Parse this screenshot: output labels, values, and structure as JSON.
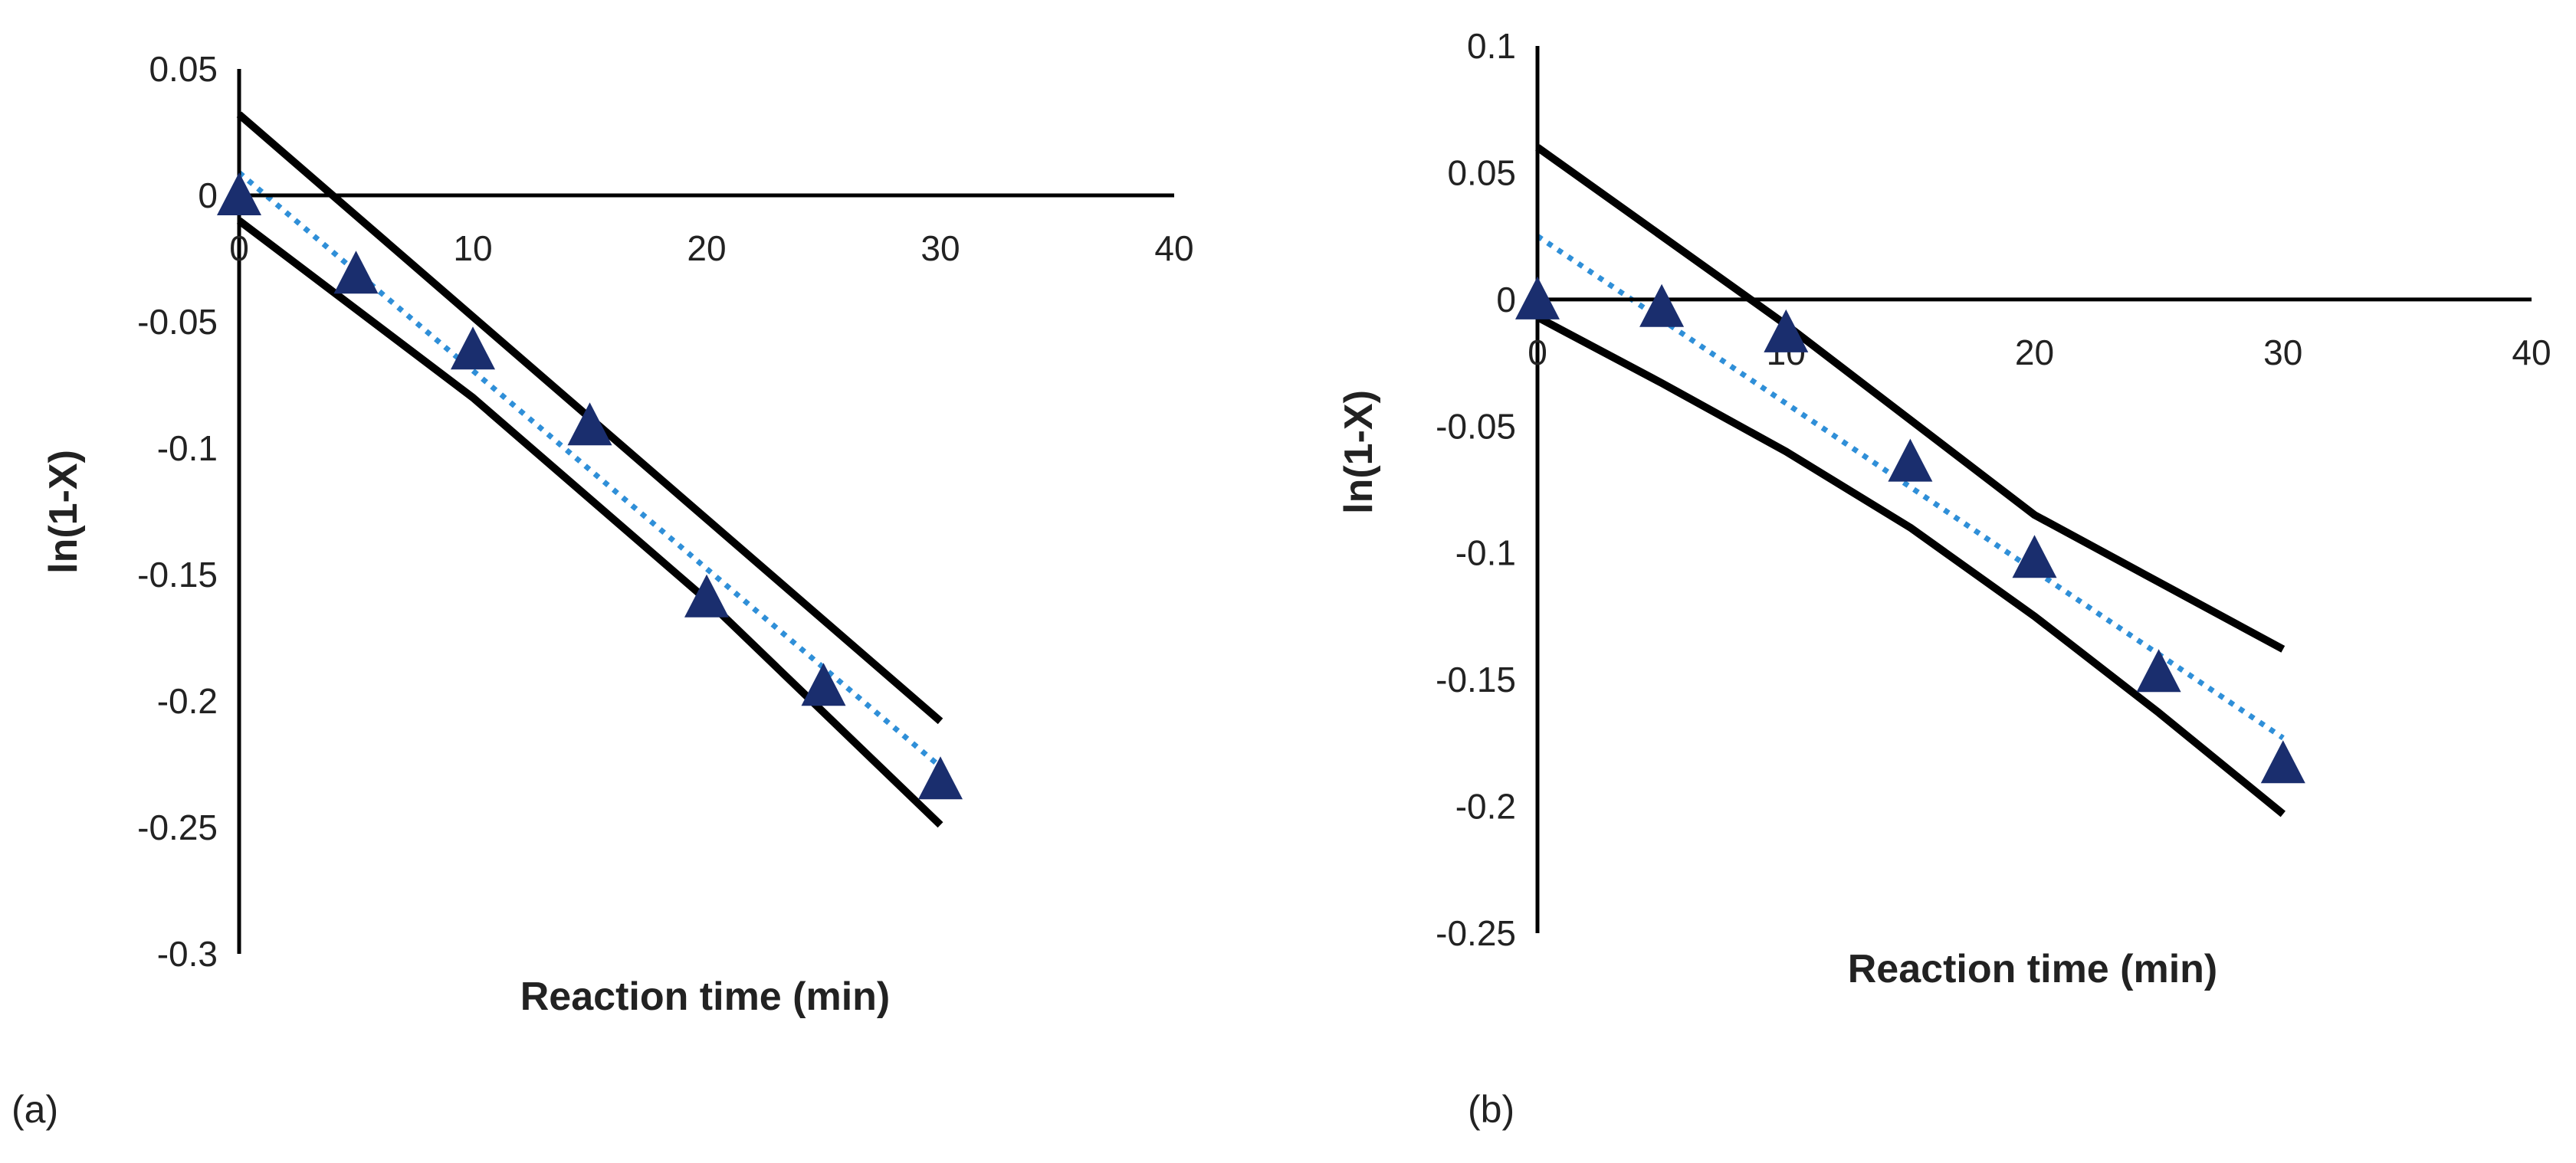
{
  "chart_data": [
    {
      "type": "scatter",
      "panel_label": "(a)",
      "xlabel": "Reaction time (min)",
      "ylabel": "ln(1-X)",
      "xlim": [
        0,
        40
      ],
      "ylim": [
        -0.3,
        0.05
      ],
      "x_ticks": [
        0,
        10,
        20,
        30,
        40
      ],
      "x_tick_labels": [
        "0",
        "10",
        "20",
        "30",
        "40"
      ],
      "y_ticks": [
        0.05,
        0,
        -0.05,
        -0.1,
        -0.15,
        -0.2,
        -0.25,
        -0.3
      ],
      "y_tick_labels": [
        "0.05",
        "0",
        "-0.05",
        "-0.1",
        "-0.15",
        "-0.2",
        "-0.25",
        "-0.3"
      ],
      "grid": false,
      "colors": {
        "marker": "#1a2e6e",
        "fit": "#2f8fd8",
        "bound": "#000000",
        "axis": "#000000"
      },
      "series": [
        {
          "name": "data",
          "kind": "scatter",
          "x": [
            0,
            5,
            10,
            15,
            20,
            25,
            30
          ],
          "y": [
            0,
            -0.031,
            -0.061,
            -0.091,
            -0.159,
            -0.194,
            -0.231
          ]
        },
        {
          "name": "fit",
          "kind": "dotted-line",
          "x": [
            0,
            30
          ],
          "y": [
            0.009,
            -0.226
          ]
        },
        {
          "name": "upper-bound",
          "kind": "line",
          "x": [
            0,
            30
          ],
          "y": [
            0.032,
            -0.208
          ]
        },
        {
          "name": "lower-bound",
          "kind": "line",
          "x": [
            0,
            10,
            20,
            30
          ],
          "y": [
            -0.01,
            -0.08,
            -0.16,
            -0.249
          ]
        }
      ]
    },
    {
      "type": "scatter",
      "panel_label": "(b)",
      "xlabel": "Reaction time (min)",
      "ylabel": "ln(1-X)",
      "xlim": [
        0,
        40
      ],
      "ylim": [
        -0.25,
        0.1
      ],
      "x_ticks": [
        0,
        10,
        20,
        30,
        40
      ],
      "x_tick_labels": [
        "0",
        "10",
        "20",
        "30",
        "40"
      ],
      "y_ticks": [
        0.1,
        0.05,
        0,
        -0.05,
        -0.1,
        -0.15,
        -0.2,
        -0.25
      ],
      "y_tick_labels": [
        "0.1",
        "0.05",
        "0",
        "-0.05",
        "-0.1",
        "-0.15",
        "-0.2",
        "-0.25"
      ],
      "grid": false,
      "colors": {
        "marker": "#1a2e6e",
        "fit": "#2f8fd8",
        "bound": "#000000",
        "axis": "#000000"
      },
      "series": [
        {
          "name": "data",
          "kind": "scatter",
          "x": [
            0,
            5,
            10,
            15,
            20,
            25,
            30
          ],
          "y": [
            0,
            -0.003,
            -0.013,
            -0.064,
            -0.102,
            -0.147,
            -0.183
          ]
        },
        {
          "name": "fit",
          "kind": "dotted-line",
          "x": [
            0,
            30
          ],
          "y": [
            0.025,
            -0.173
          ]
        },
        {
          "name": "upper-bound",
          "kind": "line",
          "x": [
            0,
            10,
            20,
            30
          ],
          "y": [
            0.06,
            -0.01,
            -0.085,
            -0.138
          ]
        },
        {
          "name": "lower-bound",
          "kind": "line",
          "x": [
            0,
            5,
            10,
            15,
            20,
            25,
            30
          ],
          "y": [
            -0.007,
            -0.033,
            -0.06,
            -0.09,
            -0.125,
            -0.163,
            -0.203
          ]
        }
      ]
    }
  ]
}
